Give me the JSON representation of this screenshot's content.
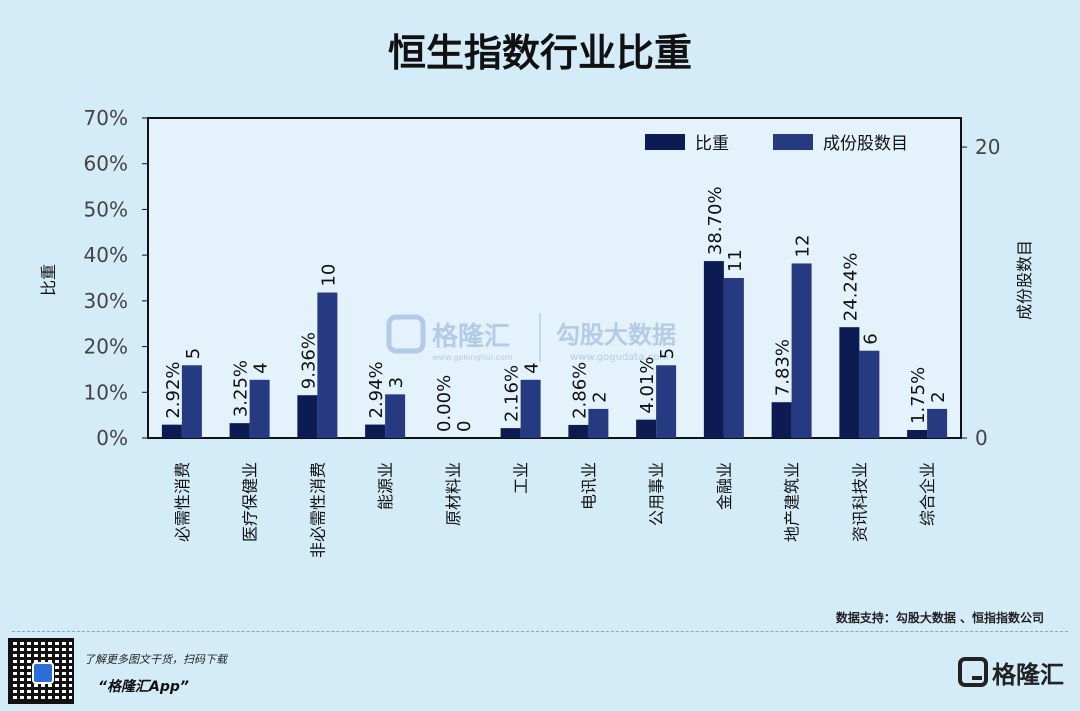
{
  "title": "恒生指数行业比重",
  "chart_data": {
    "type": "bar",
    "title": "恒生指数行业比重",
    "categories": [
      "必需性消费",
      "医疗保健业",
      "非必需性消费",
      "能源业",
      "原材料业",
      "工业",
      "电讯业",
      "公用事业",
      "金融业",
      "地产建筑业",
      "资讯科技业",
      "综合企业"
    ],
    "series": [
      {
        "name": "比重",
        "axis": "left",
        "values": [
          2.92,
          3.25,
          9.36,
          2.94,
          0.0,
          2.16,
          2.86,
          4.01,
          38.7,
          7.83,
          24.24,
          1.75
        ],
        "labels": [
          "2.92%",
          "3.25%",
          "9.36%",
          "2.94%",
          "0.00%",
          "2.16%",
          "2.86%",
          "4.01%",
          "38.70%",
          "7.83%",
          "24.24%",
          "1.75%"
        ],
        "color": "#0c1b52"
      },
      {
        "name": "成份股数目",
        "axis": "right",
        "values": [
          5,
          4,
          10,
          3,
          0,
          4,
          2,
          5,
          11,
          12,
          6,
          2
        ],
        "labels": [
          "5",
          "4",
          "10",
          "3",
          "0",
          "4",
          "2",
          "5",
          "11",
          "12",
          "6",
          "2"
        ],
        "color": "#253a80"
      }
    ],
    "ylabel": "比重",
    "y2label": "成份股数目",
    "ylim": [
      0,
      70
    ],
    "y2lim": [
      0,
      22
    ],
    "yticks": [
      "0%",
      "10%",
      "20%",
      "30%",
      "40%",
      "50%",
      "60%",
      "70%"
    ],
    "y2ticks": [
      "0",
      "20"
    ],
    "legend_position": "top-right",
    "grid": false
  },
  "watermark": {
    "left_name": "格隆汇",
    "left_url": "www.gelonghui.com",
    "right_name": "勾股大数据",
    "right_url": "www.gogudata.com"
  },
  "footer": {
    "source": "数据支持：勾股大数据 、恒指指数公司",
    "promo_line1": "了解更多图文干货，扫码下载",
    "promo_line2": "“格隆汇App”",
    "logo_text": "格隆汇"
  },
  "colors": {
    "background": "#d4ecf8"
  }
}
